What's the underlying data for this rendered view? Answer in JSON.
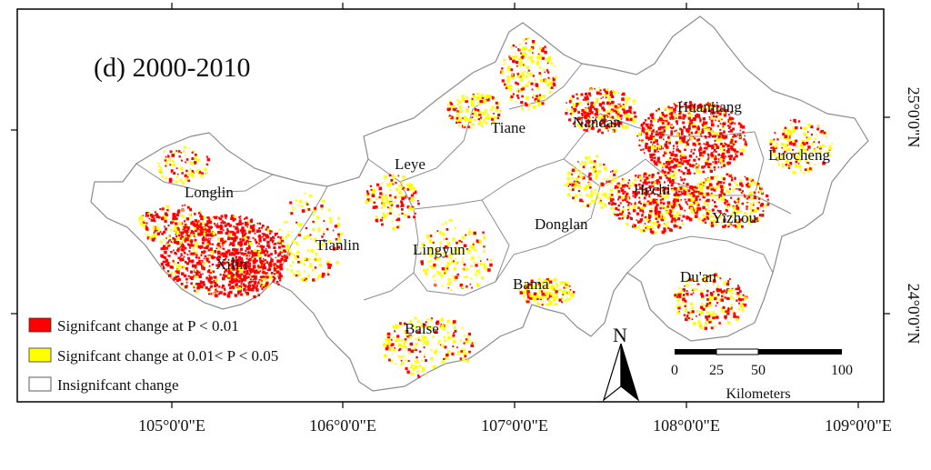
{
  "panel_title": "(d) 2000-2010",
  "longitude_labels": [
    "105°0'0\"E",
    "106°0'0\"E",
    "107°0'0\"E",
    "108°0'0\"E",
    "109°0'0\"E"
  ],
  "latitude_labels": [
    "25°0'0\"N",
    "24°0'0\"N"
  ],
  "counties": [
    "Huanjiang",
    "Nandan",
    "Tiane",
    "Luocheng",
    "Leye",
    "Longlin",
    "Hechi",
    "Yizhou",
    "Donglan",
    "Tianlin",
    "Lingyun",
    "Xilin",
    "Du'an",
    "Bama",
    "Baise"
  ],
  "legend": {
    "items": [
      {
        "label": "Signifcant change at P < 0.01",
        "color": "#ff0000"
      },
      {
        "label": "Signifcant change at 0.01< P < 0.05",
        "color": "#ffff00"
      },
      {
        "label": "Insignifcant change",
        "color": "#ffffff"
      }
    ]
  },
  "north_arrow_label": "N",
  "scale_bar": {
    "ticks": [
      "0",
      "25",
      "50",
      "100"
    ],
    "unit": "Kilometers"
  },
  "colors": {
    "significant_p001": "#ff0000",
    "significant_p005": "#ffff00",
    "insignificant": "#ffffff",
    "boundary": "#8c8c8c",
    "frame": "#000000"
  }
}
